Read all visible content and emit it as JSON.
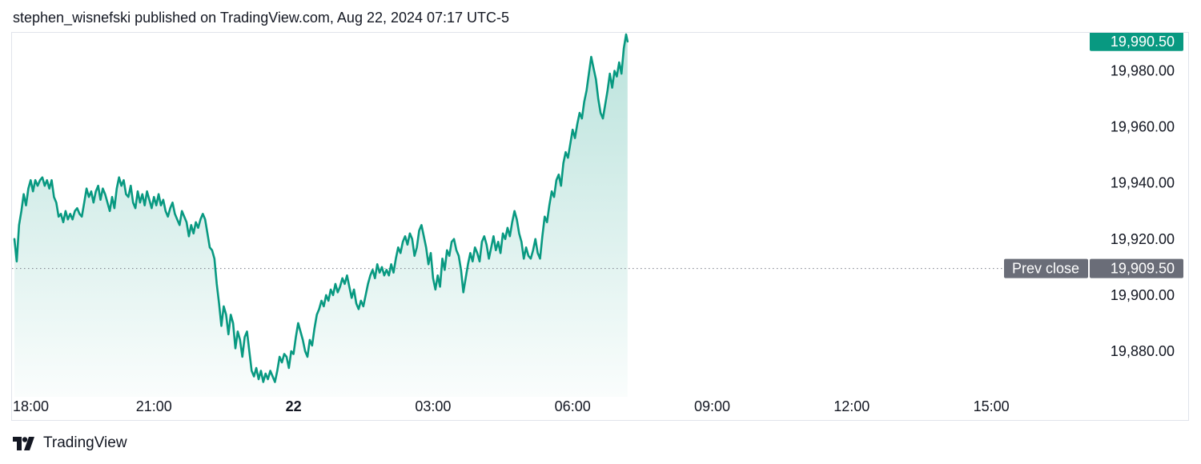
{
  "header": {
    "attribution": "stephen_wisnefski published on TradingView.com, Aug 22, 2024 07:17 UTC-5"
  },
  "footer": {
    "brand": "TradingView",
    "logo_icon": "tradingview-logo-icon"
  },
  "colors": {
    "line": "#089981",
    "area_top": "#089981",
    "price_tag": "#089981",
    "prev_close_tag": "#6a6d78",
    "grid_border": "#e0e3eb",
    "text": "#131722"
  },
  "chart_data": {
    "type": "area",
    "title": "",
    "xlabel": "",
    "ylabel": "",
    "x_ticks": [
      "18:00",
      "21:00",
      "22",
      "03:00",
      "06:00",
      "09:00",
      "12:00",
      "15:00"
    ],
    "x_ticks_bold": [
      "22"
    ],
    "y_ticks": [
      "19,880.00",
      "19,900.00",
      "19,920.00",
      "19,940.00",
      "19,960.00",
      "19,980.00"
    ],
    "ylim": [
      19868,
      19993
    ],
    "grid": false,
    "last_price": 19990.5,
    "last_price_label": "19,990.50",
    "prev_close": 19909.5,
    "prev_close_label": "19,909.50",
    "prev_close_text": "Prev close",
    "x_unit": "hours since 18:00 (Aug 21)",
    "series": [
      {
        "values": [
          [
            0.0,
            19920
          ],
          [
            0.05,
            19912
          ],
          [
            0.1,
            19925
          ],
          [
            0.15,
            19930
          ],
          [
            0.2,
            19936
          ],
          [
            0.25,
            19932
          ],
          [
            0.3,
            19938
          ],
          [
            0.35,
            19941
          ],
          [
            0.4,
            19937
          ],
          [
            0.45,
            19941
          ],
          [
            0.5,
            19939
          ],
          [
            0.55,
            19941
          ],
          [
            0.6,
            19942
          ],
          [
            0.65,
            19939
          ],
          [
            0.7,
            19941
          ],
          [
            0.75,
            19938
          ],
          [
            0.8,
            19941
          ],
          [
            0.85,
            19935
          ],
          [
            0.9,
            19933
          ],
          [
            0.95,
            19928
          ],
          [
            1.0,
            19929
          ],
          [
            1.05,
            19926
          ],
          [
            1.1,
            19930
          ],
          [
            1.15,
            19927
          ],
          [
            1.2,
            19929
          ],
          [
            1.25,
            19927
          ],
          [
            1.3,
            19930
          ],
          [
            1.35,
            19931
          ],
          [
            1.4,
            19929
          ],
          [
            1.45,
            19928
          ],
          [
            1.5,
            19933
          ],
          [
            1.55,
            19938
          ],
          [
            1.6,
            19935
          ],
          [
            1.65,
            19937
          ],
          [
            1.7,
            19933
          ],
          [
            1.75,
            19937
          ],
          [
            1.8,
            19939
          ],
          [
            1.85,
            19934
          ],
          [
            1.9,
            19938
          ],
          [
            1.95,
            19936
          ],
          [
            2.0,
            19933
          ],
          [
            2.05,
            19930
          ],
          [
            2.1,
            19935
          ],
          [
            2.15,
            19931
          ],
          [
            2.2,
            19938
          ],
          [
            2.25,
            19942
          ],
          [
            2.3,
            19939
          ],
          [
            2.35,
            19941
          ],
          [
            2.4,
            19936
          ],
          [
            2.45,
            19935
          ],
          [
            2.5,
            19939
          ],
          [
            2.55,
            19933
          ],
          [
            2.6,
            19931
          ],
          [
            2.65,
            19937
          ],
          [
            2.7,
            19933
          ],
          [
            2.75,
            19936
          ],
          [
            2.8,
            19932
          ],
          [
            2.85,
            19937
          ],
          [
            2.9,
            19934
          ],
          [
            2.95,
            19931
          ],
          [
            3.0,
            19935
          ],
          [
            3.05,
            19932
          ],
          [
            3.1,
            19936
          ],
          [
            3.15,
            19932
          ],
          [
            3.2,
            19934
          ],
          [
            3.25,
            19930
          ],
          [
            3.3,
            19928
          ],
          [
            3.35,
            19931
          ],
          [
            3.4,
            19933
          ],
          [
            3.45,
            19929
          ],
          [
            3.5,
            19927
          ],
          [
            3.55,
            19925
          ],
          [
            3.6,
            19930
          ],
          [
            3.65,
            19928
          ],
          [
            3.7,
            19926
          ],
          [
            3.75,
            19921
          ],
          [
            3.8,
            19925
          ],
          [
            3.85,
            19922
          ],
          [
            3.9,
            19926
          ],
          [
            3.95,
            19924
          ],
          [
            4.0,
            19927
          ],
          [
            4.05,
            19929
          ],
          [
            4.1,
            19927
          ],
          [
            4.15,
            19922
          ],
          [
            4.2,
            19917
          ],
          [
            4.25,
            19916
          ],
          [
            4.3,
            19913
          ],
          [
            4.35,
            19904
          ],
          [
            4.4,
            19897
          ],
          [
            4.45,
            19889
          ],
          [
            4.5,
            19896
          ],
          [
            4.55,
            19893
          ],
          [
            4.6,
            19886
          ],
          [
            4.65,
            19893
          ],
          [
            4.7,
            19890
          ],
          [
            4.75,
            19881
          ],
          [
            4.8,
            19887
          ],
          [
            4.85,
            19884
          ],
          [
            4.9,
            19878
          ],
          [
            4.95,
            19885
          ],
          [
            5.0,
            19887
          ],
          [
            5.05,
            19880
          ],
          [
            5.1,
            19873
          ],
          [
            5.15,
            19871
          ],
          [
            5.2,
            19874
          ],
          [
            5.25,
            19870
          ],
          [
            5.3,
            19873
          ],
          [
            5.35,
            19869
          ],
          [
            5.4,
            19872
          ],
          [
            5.45,
            19870
          ],
          [
            5.5,
            19873
          ],
          [
            5.55,
            19871
          ],
          [
            5.6,
            19869
          ],
          [
            5.65,
            19873
          ],
          [
            5.7,
            19878
          ],
          [
            5.75,
            19876
          ],
          [
            5.8,
            19879
          ],
          [
            5.85,
            19878
          ],
          [
            5.9,
            19874
          ],
          [
            5.95,
            19880
          ],
          [
            6.0,
            19879
          ],
          [
            6.05,
            19885
          ],
          [
            6.1,
            19890
          ],
          [
            6.15,
            19887
          ],
          [
            6.2,
            19884
          ],
          [
            6.25,
            19880
          ],
          [
            6.3,
            19878
          ],
          [
            6.35,
            19884
          ],
          [
            6.4,
            19882
          ],
          [
            6.45,
            19888
          ],
          [
            6.5,
            19893
          ],
          [
            6.55,
            19895
          ],
          [
            6.6,
            19898
          ],
          [
            6.65,
            19896
          ],
          [
            6.7,
            19900
          ],
          [
            6.75,
            19898
          ],
          [
            6.8,
            19902
          ],
          [
            6.85,
            19900
          ],
          [
            6.9,
            19904
          ],
          [
            6.95,
            19901
          ],
          [
            7.0,
            19903
          ],
          [
            7.05,
            19906
          ],
          [
            7.1,
            19904
          ],
          [
            7.15,
            19907
          ],
          [
            7.2,
            19903
          ],
          [
            7.25,
            19899
          ],
          [
            7.3,
            19902
          ],
          [
            7.35,
            19897
          ],
          [
            7.4,
            19895
          ],
          [
            7.45,
            19898
          ],
          [
            7.5,
            19896
          ],
          [
            7.55,
            19900
          ],
          [
            7.6,
            19904
          ],
          [
            7.65,
            19907
          ],
          [
            7.7,
            19909
          ],
          [
            7.75,
            19906
          ],
          [
            7.8,
            19911
          ],
          [
            7.85,
            19908
          ],
          [
            7.9,
            19910
          ],
          [
            7.95,
            19907
          ],
          [
            8.0,
            19909
          ],
          [
            8.05,
            19907
          ],
          [
            8.1,
            19911
          ],
          [
            8.15,
            19908
          ],
          [
            8.2,
            19913
          ],
          [
            8.25,
            19917
          ],
          [
            8.3,
            19915
          ],
          [
            8.35,
            19919
          ],
          [
            8.4,
            19921
          ],
          [
            8.45,
            19918
          ],
          [
            8.5,
            19922
          ],
          [
            8.55,
            19920
          ],
          [
            8.6,
            19914
          ],
          [
            8.65,
            19917
          ],
          [
            8.7,
            19923
          ],
          [
            8.75,
            19925
          ],
          [
            8.8,
            19921
          ],
          [
            8.85,
            19917
          ],
          [
            8.9,
            19911
          ],
          [
            8.95,
            19915
          ],
          [
            9.0,
            19906
          ],
          [
            9.05,
            19902
          ],
          [
            9.1,
            19907
          ],
          [
            9.15,
            19903
          ],
          [
            9.2,
            19913
          ],
          [
            9.25,
            19909
          ],
          [
            9.3,
            19916
          ],
          [
            9.35,
            19914
          ],
          [
            9.4,
            19919
          ],
          [
            9.45,
            19920
          ],
          [
            9.5,
            19916
          ],
          [
            9.55,
            19914
          ],
          [
            9.6,
            19909
          ],
          [
            9.65,
            19901
          ],
          [
            9.7,
            19906
          ],
          [
            9.75,
            19911
          ],
          [
            9.8,
            19915
          ],
          [
            9.85,
            19912
          ],
          [
            9.9,
            19917
          ],
          [
            9.95,
            19915
          ],
          [
            10.0,
            19912
          ],
          [
            10.05,
            19919
          ],
          [
            10.1,
            19921
          ],
          [
            10.15,
            19918
          ],
          [
            10.2,
            19913
          ],
          [
            10.25,
            19917
          ],
          [
            10.3,
            19921
          ],
          [
            10.35,
            19916
          ],
          [
            10.4,
            19919
          ],
          [
            10.45,
            19915
          ],
          [
            10.5,
            19922
          ],
          [
            10.55,
            19920
          ],
          [
            10.6,
            19924
          ],
          [
            10.65,
            19921
          ],
          [
            10.7,
            19926
          ],
          [
            10.75,
            19930
          ],
          [
            10.8,
            19927
          ],
          [
            10.85,
            19922
          ],
          [
            10.9,
            19919
          ],
          [
            10.95,
            19913
          ],
          [
            11.0,
            19917
          ],
          [
            11.05,
            19914
          ],
          [
            11.1,
            19913
          ],
          [
            11.15,
            19916
          ],
          [
            11.2,
            19920
          ],
          [
            11.25,
            19915
          ],
          [
            11.3,
            19913
          ],
          [
            11.35,
            19921
          ],
          [
            11.4,
            19928
          ],
          [
            11.45,
            19926
          ],
          [
            11.5,
            19932
          ],
          [
            11.55,
            19937
          ],
          [
            11.6,
            19935
          ],
          [
            11.65,
            19941
          ],
          [
            11.7,
            19943
          ],
          [
            11.75,
            19939
          ],
          [
            11.8,
            19947
          ],
          [
            11.85,
            19951
          ],
          [
            11.9,
            19949
          ],
          [
            11.95,
            19954
          ],
          [
            12.0,
            19959
          ],
          [
            12.05,
            19956
          ],
          [
            12.1,
            19961
          ],
          [
            12.15,
            19965
          ],
          [
            12.2,
            19963
          ],
          [
            12.25,
            19969
          ],
          [
            12.3,
            19973
          ],
          [
            12.35,
            19979
          ],
          [
            12.4,
            19985
          ],
          [
            12.45,
            19981
          ],
          [
            12.5,
            19977
          ],
          [
            12.55,
            19970
          ],
          [
            12.6,
            19965
          ],
          [
            12.65,
            19963
          ],
          [
            12.7,
            19968
          ],
          [
            12.75,
            19973
          ],
          [
            12.8,
            19979
          ],
          [
            12.85,
            19974
          ],
          [
            12.9,
            19980
          ],
          [
            12.95,
            19978
          ],
          [
            13.0,
            19983
          ],
          [
            13.05,
            19979
          ],
          [
            13.1,
            19988
          ],
          [
            13.15,
            19993
          ],
          [
            13.18,
            19990.5
          ]
        ]
      }
    ]
  }
}
